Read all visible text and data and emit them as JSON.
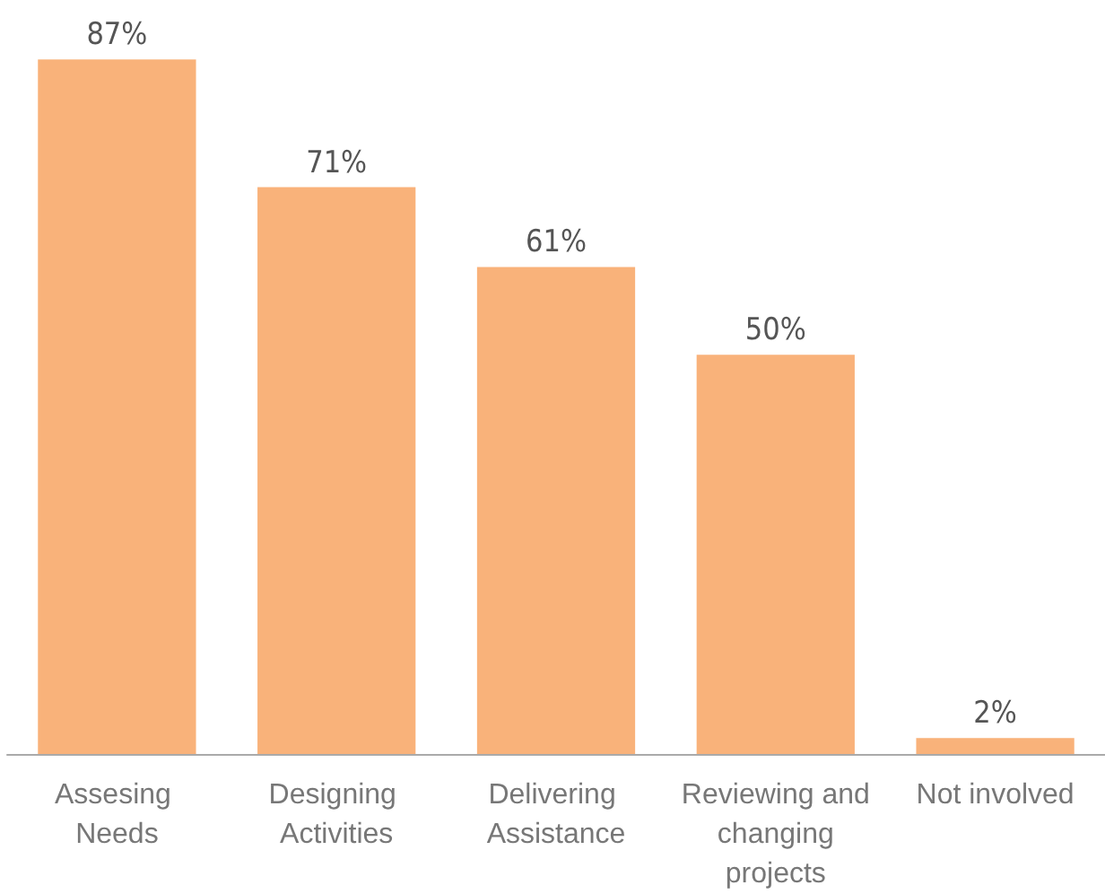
{
  "chart_data": {
    "type": "bar",
    "categories": [
      "Assesing Needs",
      "Designing Activities",
      "Delivering Assistance",
      "Reviewing and changing projects",
      "Not involved"
    ],
    "values": [
      87,
      71,
      61,
      50,
      2
    ],
    "value_labels": [
      "87%",
      "71%",
      "61%",
      "50%",
      "2%"
    ],
    "color": "#f9b27a"
  }
}
